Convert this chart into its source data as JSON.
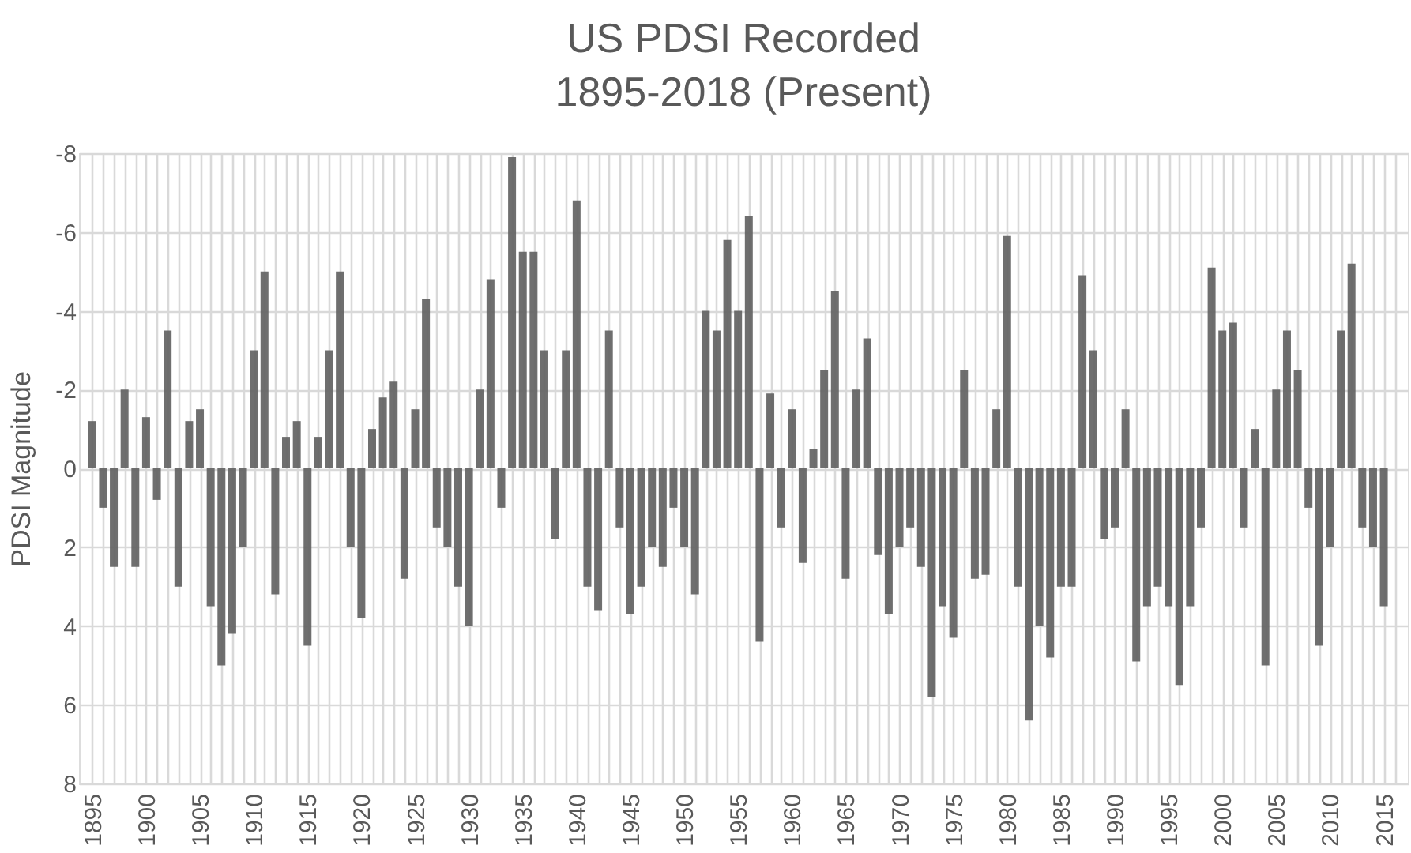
{
  "chart_data": {
    "type": "bar",
    "title": "US PDSI Recorded",
    "subtitle": "1895-2018 (Present)",
    "ylabel": "PDSI Magnitude",
    "x": [
      1895,
      1896,
      1897,
      1898,
      1899,
      1900,
      1901,
      1902,
      1903,
      1904,
      1905,
      1906,
      1907,
      1908,
      1909,
      1910,
      1911,
      1912,
      1913,
      1914,
      1915,
      1916,
      1917,
      1918,
      1919,
      1920,
      1921,
      1922,
      1923,
      1924,
      1925,
      1926,
      1927,
      1928,
      1929,
      1930,
      1931,
      1932,
      1933,
      1934,
      1935,
      1936,
      1937,
      1938,
      1939,
      1940,
      1941,
      1942,
      1943,
      1944,
      1945,
      1946,
      1947,
      1948,
      1949,
      1950,
      1951,
      1952,
      1953,
      1954,
      1955,
      1956,
      1957,
      1958,
      1959,
      1960,
      1961,
      1962,
      1963,
      1964,
      1965,
      1966,
      1967,
      1968,
      1969,
      1970,
      1971,
      1972,
      1973,
      1974,
      1975,
      1976,
      1977,
      1978,
      1979,
      1980,
      1981,
      1982,
      1983,
      1984,
      1985,
      1986,
      1987,
      1988,
      1989,
      1990,
      1991,
      1992,
      1993,
      1994,
      1995,
      1996,
      1997,
      1998,
      1999,
      2000,
      2001,
      2002,
      2003,
      2004,
      2005,
      2006,
      2007,
      2008,
      2009,
      2010,
      2011,
      2012,
      2013,
      2014,
      2015
    ],
    "values": [
      -1.2,
      1.0,
      2.5,
      -2.0,
      2.5,
      -1.3,
      0.8,
      -3.5,
      3.0,
      -1.2,
      -1.5,
      3.5,
      5.0,
      4.2,
      2.0,
      -3.0,
      -5.0,
      3.2,
      -0.8,
      -1.2,
      4.5,
      -0.8,
      -3.0,
      -5.0,
      2.0,
      3.8,
      -1.0,
      -1.8,
      -2.2,
      2.8,
      -1.5,
      -4.3,
      1.5,
      2.0,
      3.0,
      4.0,
      -2.0,
      -4.8,
      1.0,
      -7.9,
      -5.5,
      -5.5,
      -3.0,
      1.8,
      -3.0,
      -6.8,
      3.0,
      3.6,
      -3.5,
      1.5,
      3.7,
      3.0,
      2.0,
      2.5,
      1.0,
      2.0,
      3.2,
      -4.0,
      -3.5,
      -5.8,
      -4.0,
      -6.4,
      4.4,
      -1.9,
      1.5,
      -1.5,
      2.4,
      -0.5,
      -2.5,
      -4.5,
      2.8,
      -2.0,
      -3.3,
      2.2,
      3.7,
      2.0,
      1.5,
      2.5,
      5.8,
      3.5,
      4.3,
      -2.5,
      2.8,
      2.7,
      -1.5,
      -5.9,
      3.0,
      6.4,
      4.0,
      4.8,
      3.0,
      3.0,
      -4.9,
      -3.0,
      1.8,
      1.5,
      -1.5,
      4.9,
      3.5,
      3.0,
      3.5,
      5.5,
      3.5,
      1.5,
      -5.1,
      -3.5,
      -3.7,
      1.5,
      -1.0,
      5.0,
      -2.0,
      -3.5,
      -2.5,
      1.0,
      4.5,
      2.0,
      -3.5,
      -5.2,
      1.5,
      2.0,
      3.5
    ],
    "color": "#5f5f5f",
    "xlim": [
      1894.5,
      2016.5
    ],
    "xticks": [
      1895,
      {
        "value": 1896,
        "label": null
      },
      {
        "value": 1897,
        "label": null
      },
      {
        "value": 1898,
        "label": null
      },
      {
        "value": 1899,
        "label": null
      },
      1900,
      {
        "value": 1901,
        "label": null
      },
      {
        "value": 1902,
        "label": null
      },
      {
        "value": 1903,
        "label": null
      },
      {
        "value": 1904,
        "label": null
      },
      1905,
      {
        "value": 1906,
        "label": null
      },
      {
        "value": 1907,
        "label": null
      },
      {
        "value": 1908,
        "label": null
      },
      {
        "value": 1909,
        "label": null
      },
      1910,
      {
        "value": 1911,
        "label": null
      },
      {
        "value": 1912,
        "label": null
      },
      {
        "value": 1913,
        "label": null
      },
      {
        "value": 1914,
        "label": null
      },
      1915,
      {
        "value": 1916,
        "label": null
      },
      {
        "value": 1917,
        "label": null
      },
      {
        "value": 1918,
        "label": null
      },
      {
        "value": 1919,
        "label": null
      },
      1920,
      {
        "value": 1921,
        "label": null
      },
      {
        "value": 1922,
        "label": null
      },
      {
        "value": 1923,
        "label": null
      },
      {
        "value": 1924,
        "label": null
      },
      1925,
      {
        "value": 1926,
        "label": null
      },
      {
        "value": 1927,
        "label": null
      },
      {
        "value": 1928,
        "label": null
      },
      {
        "value": 1929,
        "label": null
      },
      1930,
      {
        "value": 1931,
        "label": null
      },
      {
        "value": 1932,
        "label": null
      },
      {
        "value": 1933,
        "label": null
      },
      {
        "value": 1934,
        "label": null
      },
      1935,
      {
        "value": 1936,
        "label": null
      },
      {
        "value": 1937,
        "label": null
      },
      {
        "value": 1938,
        "label": null
      },
      {
        "value": 1939,
        "label": null
      },
      1940,
      {
        "value": 1941,
        "label": null
      },
      {
        "value": 1942,
        "label": null
      },
      {
        "value": 1943,
        "label": null
      },
      {
        "value": 1944,
        "label": null
      },
      1945,
      {
        "value": 1946,
        "label": null
      },
      {
        "value": 1947,
        "label": null
      },
      {
        "value": 1948,
        "label": null
      },
      {
        "value": 1949,
        "label": null
      },
      1950,
      {
        "value": 1951,
        "label": null
      },
      {
        "value": 1952,
        "label": null
      },
      {
        "value": 1953,
        "label": null
      },
      {
        "value": 1954,
        "label": null
      },
      1955,
      {
        "value": 1956,
        "label": null
      },
      {
        "value": 1957,
        "label": null
      },
      {
        "value": 1958,
        "label": null
      },
      {
        "value": 1959,
        "label": null
      },
      1960,
      {
        "value": 1961,
        "label": null
      },
      {
        "value": 1962,
        "label": null
      },
      {
        "value": 1963,
        "label": null
      },
      {
        "value": 1964,
        "label": null
      },
      1965,
      {
        "value": 1966,
        "label": null
      },
      {
        "value": 1967,
        "label": null
      },
      {
        "value": 1968,
        "label": null
      },
      {
        "value": 1969,
        "label": null
      },
      1970,
      {
        "value": 1971,
        "label": null
      },
      {
        "value": 1972,
        "label": null
      },
      {
        "value": 1973,
        "label": null
      },
      {
        "value": 1974,
        "label": null
      },
      1975,
      {
        "value": 1976,
        "label": null
      },
      {
        "value": 1977,
        "label": null
      },
      {
        "value": 1978,
        "label": null
      },
      {
        "value": 1979,
        "label": null
      },
      1980,
      {
        "value": 1981,
        "label": null
      },
      {
        "value": 1982,
        "label": null
      },
      {
        "value": 1983,
        "label": null
      },
      {
        "value": 1984,
        "label": null
      },
      1985,
      {
        "value": 1986,
        "label": null
      },
      {
        "value": 1987,
        "label": null
      },
      {
        "value": 1988,
        "label": null
      },
      {
        "value": 1989,
        "label": null
      },
      1990,
      {
        "value": 1991,
        "label": null
      },
      {
        "value": 1992,
        "label": null
      },
      {
        "value": 1993,
        "label": null
      },
      {
        "value": 1994,
        "label": null
      },
      1995,
      {
        "value": 1996,
        "label": null
      },
      {
        "value": 1997,
        "label": null
      },
      {
        "value": 1998,
        "label": null
      },
      {
        "value": 1999,
        "label": null
      },
      2000,
      {
        "value": 2001,
        "label": null
      },
      {
        "value": 2002,
        "label": null
      },
      {
        "value": 2003,
        "label": null
      },
      {
        "value": 2004,
        "label": null
      },
      2005,
      {
        "value": 2006,
        "label": null
      },
      {
        "value": 2007,
        "label": null
      },
      {
        "value": 2008,
        "label": null
      },
      {
        "value": 2009,
        "label": null
      },
      2010,
      {
        "value": 2011,
        "label": null
      },
      {
        "value": 2012,
        "label": null
      },
      {
        "value": 2013,
        "label": null
      },
      {
        "value": 2014,
        "label": null
      },
      2015,
      {
        "value": 2016,
        "label": null
      }
    ],
    "ylim": [
      8,
      -8
    ],
    "yticks": [
      -8,
      -6,
      -4,
      -2,
      0,
      2,
      4,
      6,
      8
    ],
    "grid": true
  }
}
